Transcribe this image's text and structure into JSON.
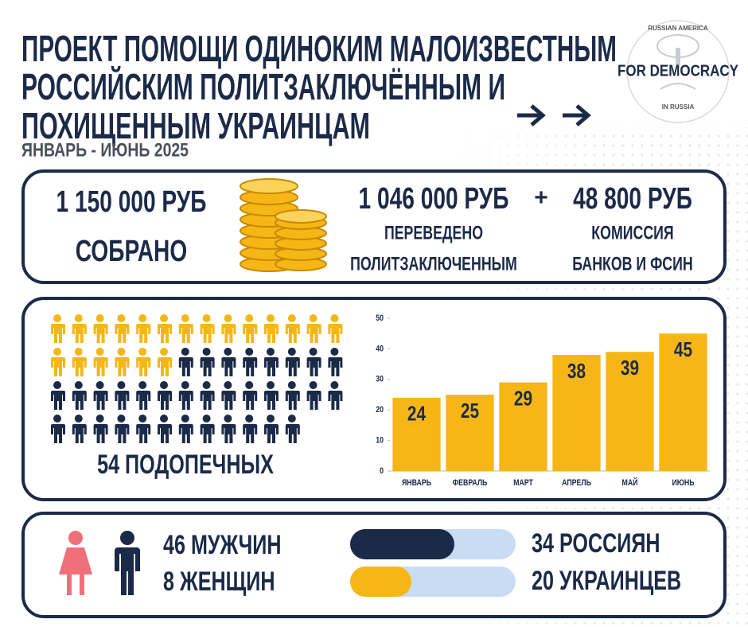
{
  "header": {
    "title_lines": [
      "ПРОЕКТ ПОМОЩИ ОДИНОКИМ МАЛОИЗВЕСТНЫМ",
      "РОССИЙСКИМ ПОЛИТЗАКЛЮЧЁННЫМ И",
      "ПОХИЩЕННЫМ УКРАИНЦАМ"
    ],
    "subtitle": "ЯНВАРЬ - ИЮНЬ 2025"
  },
  "logo": {
    "top": "RUSSIAN AMERICA",
    "main": "FOR DEMOCRACY",
    "bottom": "IN RUSSIA"
  },
  "stats": {
    "collected": {
      "amount": "1 150 000 РУБ",
      "label": "СОБРАНО"
    },
    "transferred": {
      "amount": "1 046 000 РУБ",
      "label_lines": [
        "ПЕРЕВЕДЕНО",
        "ПОЛИТЗАКЛЮЧЕННЫМ"
      ]
    },
    "plus": "+",
    "commission": {
      "amount": "48 800 РУБ",
      "label_lines": [
        "КОМИССИЯ",
        "БАНКОВ И ФСИН"
      ]
    }
  },
  "wards": {
    "value": 54,
    "label": "54 ПОДОПЕЧНЫХ"
  },
  "nationality": [
    {
      "value": 34,
      "label": "34 РОССИЯН",
      "color": "#1b2a48"
    },
    {
      "value": 20,
      "label": "20 УКРАИНЦЕВ",
      "color": "#f6b616"
    }
  ],
  "gender": [
    "46 МУЖЧИН",
    "8 ЖЕНЩИН"
  ],
  "chart_data": {
    "type": "bar",
    "categories": [
      "ЯНВАРЬ",
      "ФЕВРАЛЬ",
      "МАРТ",
      "АПРЕЛЬ",
      "МАЙ",
      "ИЮНЬ"
    ],
    "values": [
      24,
      25,
      29,
      38,
      39,
      45
    ],
    "color": "#f6b616",
    "ylim": [
      0,
      50
    ],
    "yticks": [
      0,
      10,
      20,
      30,
      40,
      50
    ]
  }
}
